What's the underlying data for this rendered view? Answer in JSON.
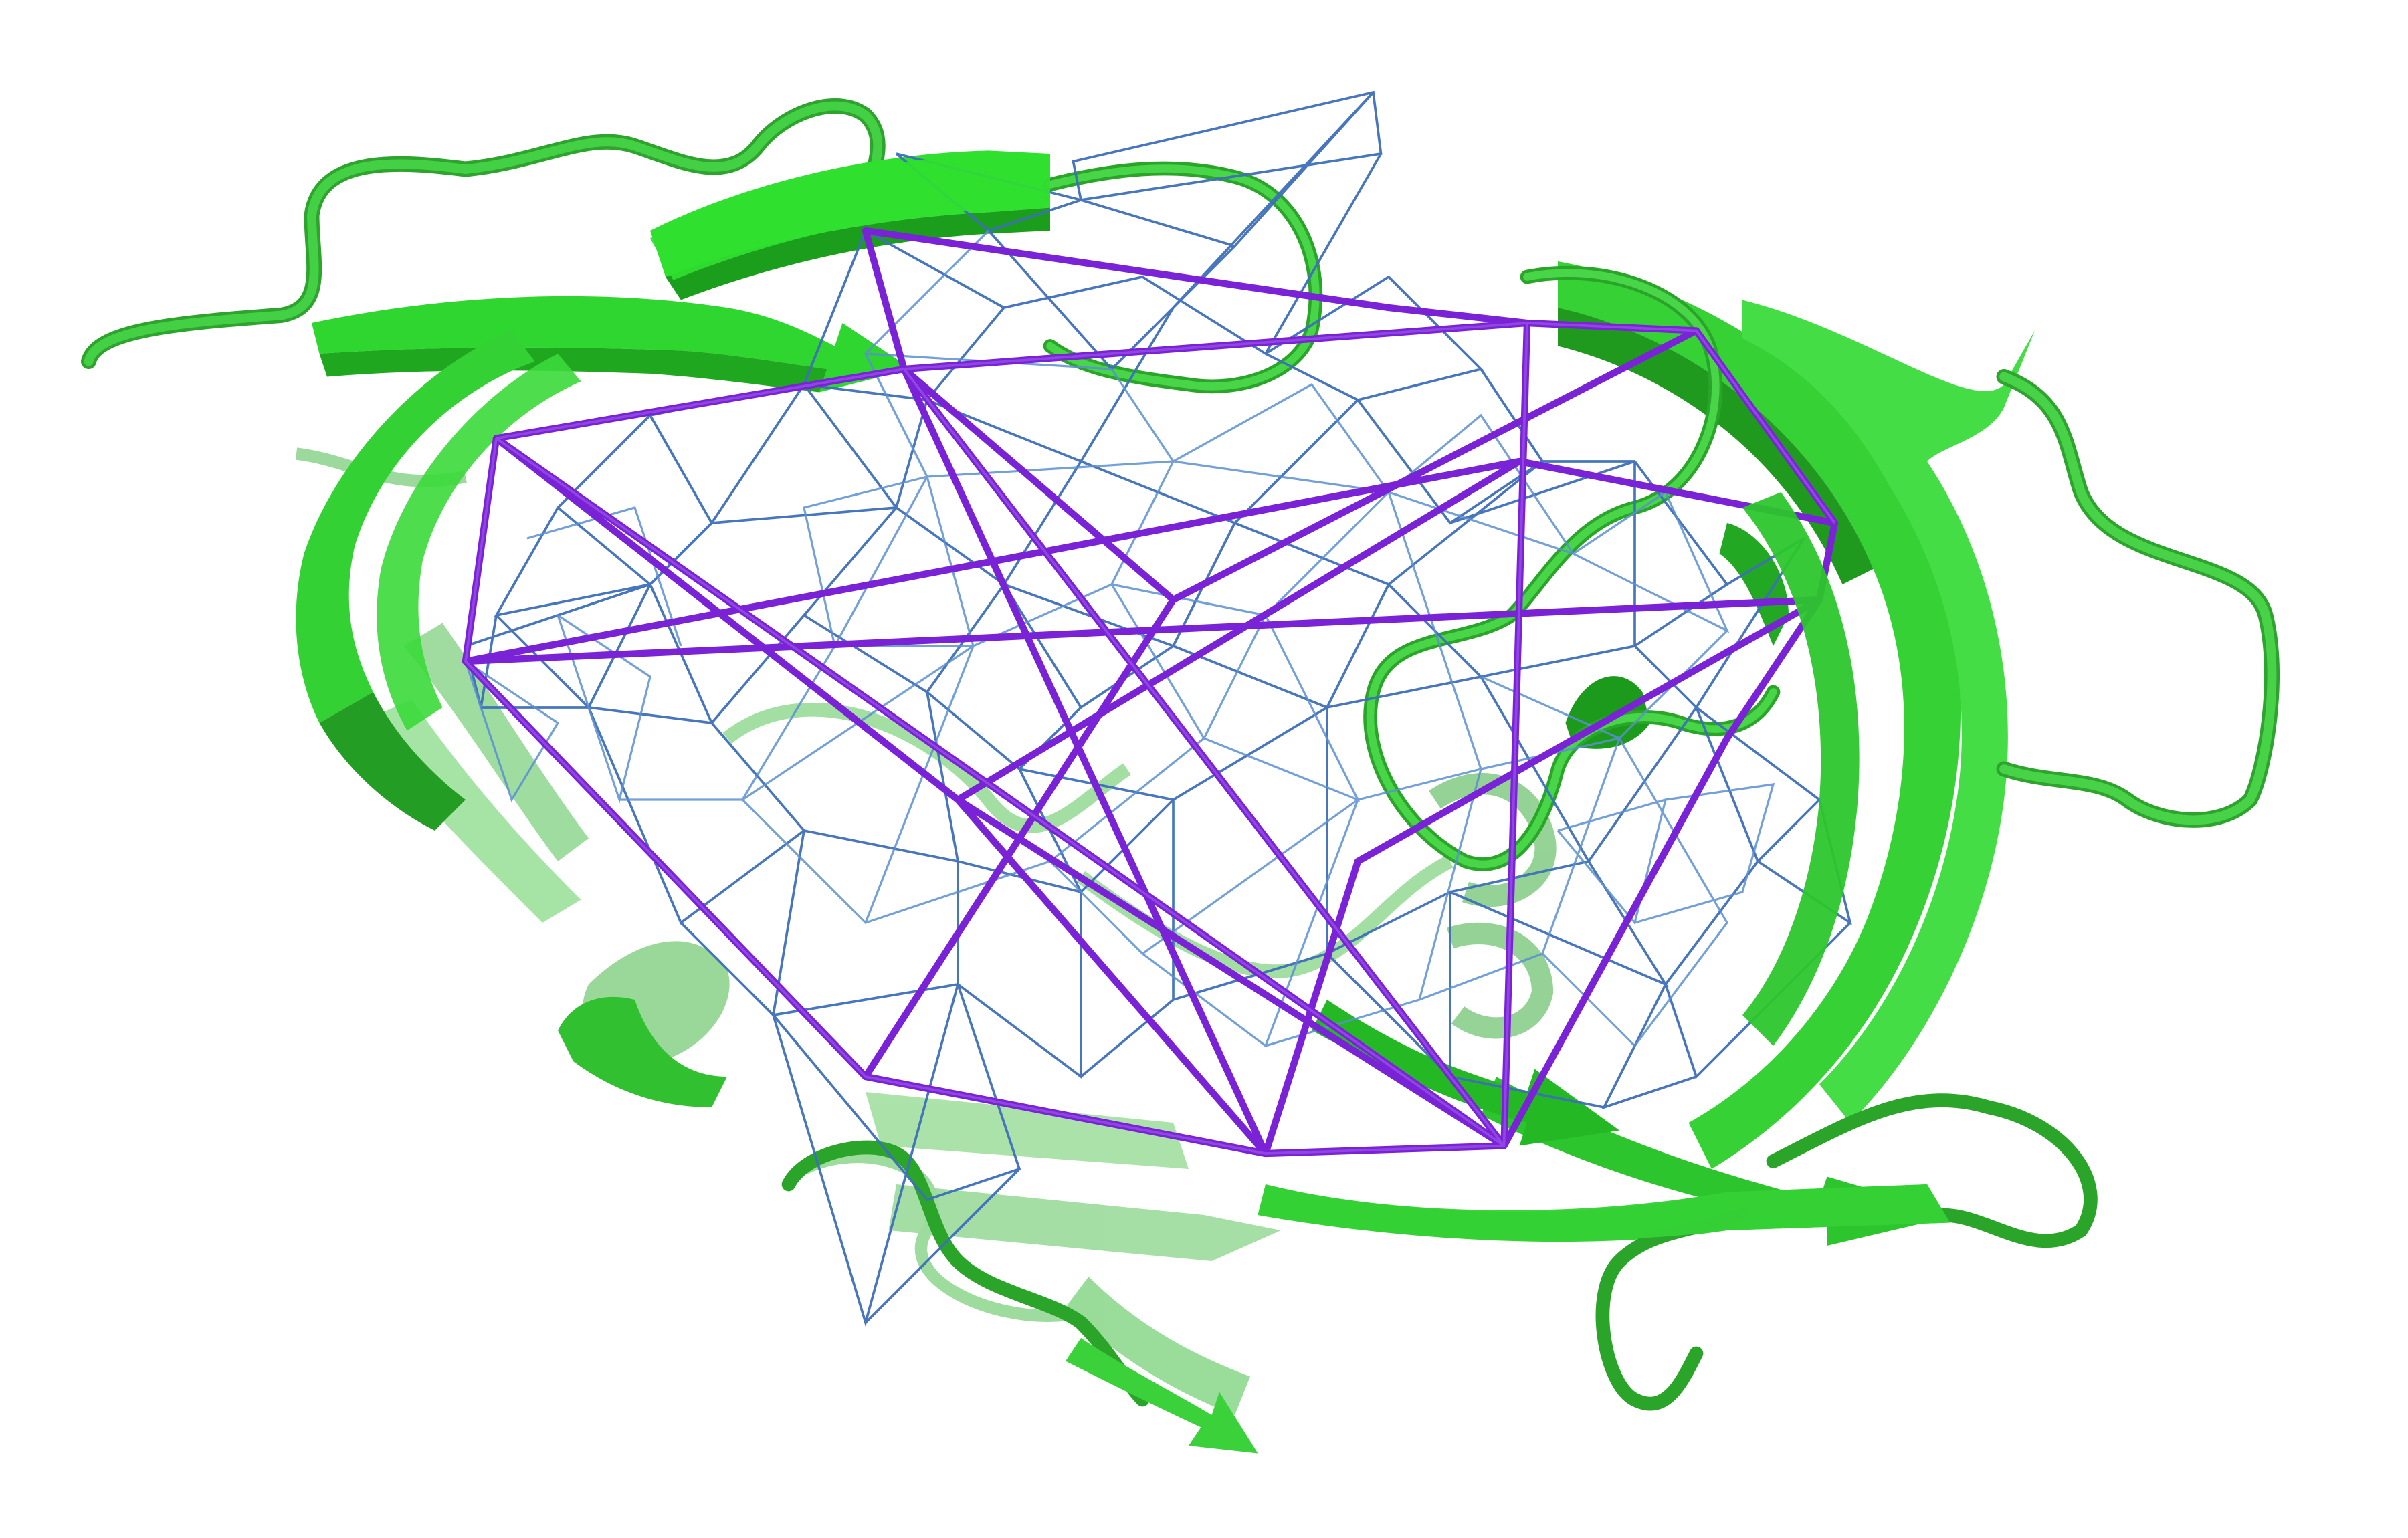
{
  "image": {
    "background": "#ffffff",
    "palette": {
      "ribbon_green": "#33d633",
      "ribbon_green_light": "#6fe86f",
      "ribbon_green_dark": "#1f9e1f",
      "ribbon_green_back": "#7ecb7e",
      "network_purple": "#7a22d6",
      "network_blue": "#3d6fb8",
      "network_blue_light": "#5b8fd0"
    }
  }
}
